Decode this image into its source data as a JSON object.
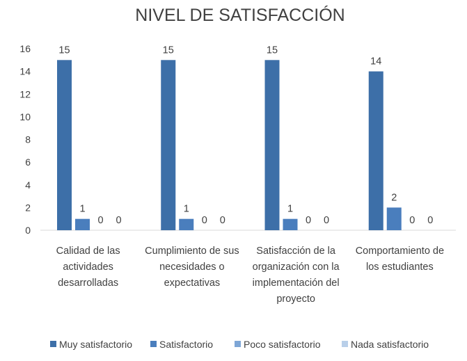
{
  "chart_data": {
    "type": "bar",
    "title": "NIVEL DE SATISFACCIÓN",
    "categories": [
      [
        "Calidad de las",
        "actividades",
        "desarrolladas"
      ],
      [
        "Cumplimiento de sus",
        "necesidades o",
        "expectativas"
      ],
      [
        "Satisfacción de la",
        "organización con la",
        "implementación del",
        "proyecto"
      ],
      [
        "Comportamiento de",
        "los estudiantes"
      ]
    ],
    "series": [
      {
        "name": "Muy satisfactorio",
        "color": "#3d6fa8",
        "values": [
          15,
          15,
          15,
          14
        ]
      },
      {
        "name": "Satisfactorio",
        "color": "#4a7ebd",
        "values": [
          1,
          1,
          1,
          2
        ]
      },
      {
        "name": "Poco satisfactorio",
        "color": "#7ea6d6",
        "values": [
          0,
          0,
          0,
          0
        ]
      },
      {
        "name": "Nada satisfactorio",
        "color": "#b9cfe9",
        "values": [
          0,
          0,
          0,
          0
        ]
      }
    ],
    "ylim": [
      0,
      16
    ],
    "yticks": [
      0,
      2,
      4,
      6,
      8,
      10,
      12,
      14,
      16
    ],
    "grid": false,
    "legend": "bottom",
    "data_labels": true
  }
}
